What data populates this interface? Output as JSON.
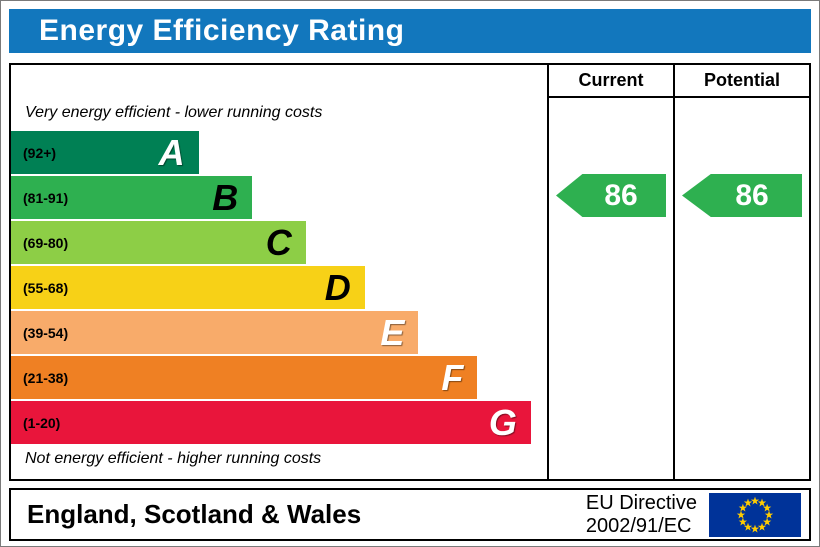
{
  "title": "Energy Efficiency Rating",
  "colors": {
    "header_bar": "#1277bd",
    "border": "#000000"
  },
  "table": {
    "current_header": "Current",
    "potential_header": "Potential"
  },
  "captions": {
    "top": "Very energy efficient - lower running costs",
    "bottom": "Not energy efficient - higher running costs"
  },
  "bands": [
    {
      "letter": "A",
      "range": "(92+)",
      "color": "#008054",
      "letter_color": "#ffffff",
      "width_pct": 35
    },
    {
      "letter": "B",
      "range": "(81-91)",
      "color": "#2eb050",
      "letter_color": "#000000",
      "width_pct": 45
    },
    {
      "letter": "C",
      "range": "(69-80)",
      "color": "#8dce46",
      "letter_color": "#000000",
      "width_pct": 55
    },
    {
      "letter": "D",
      "range": "(55-68)",
      "color": "#f7d117",
      "letter_color": "#000000",
      "width_pct": 66
    },
    {
      "letter": "E",
      "range": "(39-54)",
      "color": "#f8ab6a",
      "letter_color": "#ffffff",
      "width_pct": 76
    },
    {
      "letter": "F",
      "range": "(21-38)",
      "color": "#ef8023",
      "letter_color": "#ffffff",
      "width_pct": 87
    },
    {
      "letter": "G",
      "range": "(1-20)",
      "color": "#e9153b",
      "letter_color": "#ffffff",
      "width_pct": 97
    }
  ],
  "ratings": {
    "current": {
      "value": "86",
      "band": "B",
      "color": "#2eb050"
    },
    "potential": {
      "value": "86",
      "band": "B",
      "color": "#2eb050"
    }
  },
  "footer": {
    "region": "England, Scotland & Wales",
    "directive_line1": "EU Directive",
    "directive_line2": "2002/91/EC",
    "flag_bg": "#003399",
    "flag_stars": "#ffcc00"
  },
  "chart_data": {
    "type": "bar",
    "title": "Energy Efficiency Rating",
    "categories": [
      "A (92+)",
      "B (81-91)",
      "C (69-80)",
      "D (55-68)",
      "E (39-54)",
      "F (21-38)",
      "G (1-20)"
    ],
    "band_scale_pct": [
      35,
      45,
      55,
      66,
      76,
      87,
      97
    ],
    "series": [
      {
        "name": "Current",
        "value": 86,
        "band": "B"
      },
      {
        "name": "Potential",
        "value": 86,
        "band": "B"
      }
    ],
    "xlabel": "",
    "ylabel": "",
    "legend_position": "none",
    "notes": "UK EPC energy efficiency scale A(92+) to G(1-20); current rating 86 (B) and potential rating 86 (B)"
  }
}
